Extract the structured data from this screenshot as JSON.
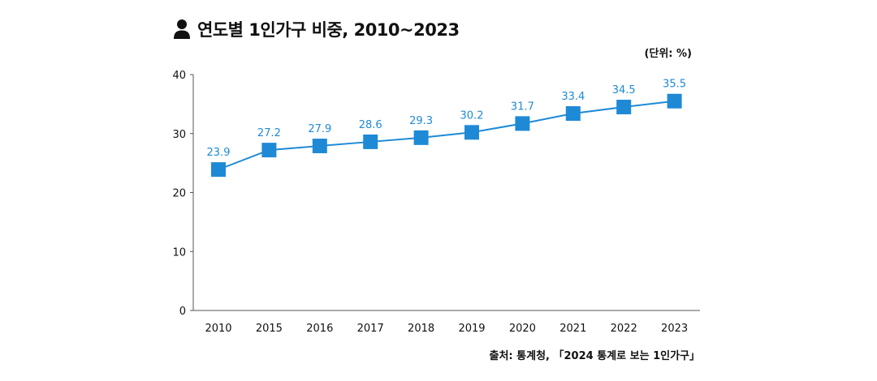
{
  "header": {
    "icon": "person-icon",
    "title": "연도별 1인가구 비중, 2010~2023",
    "unit_note": "(단위: %)"
  },
  "footer": {
    "source": "출처: 통계청, 「2024 통계로 보는 1인가구」"
  },
  "colors": {
    "series": "#1e8ad6",
    "axis": "#555555",
    "text": "#111111"
  },
  "chart_data": {
    "type": "line",
    "title": "연도별 1인가구 비중, 2010~2023",
    "xlabel": "",
    "ylabel": "",
    "categories": [
      "2010",
      "2015",
      "2016",
      "2017",
      "2018",
      "2019",
      "2020",
      "2021",
      "2022",
      "2023"
    ],
    "series": [
      {
        "values": [
          23.9,
          27.2,
          27.9,
          28.6,
          29.3,
          30.2,
          31.7,
          33.4,
          34.5,
          35.5
        ],
        "marker": "square"
      }
    ],
    "ylim": [
      0,
      40
    ],
    "yticks": [
      0,
      10,
      20,
      30,
      40
    ],
    "grid": false,
    "legend": "none",
    "data_labels": true
  }
}
